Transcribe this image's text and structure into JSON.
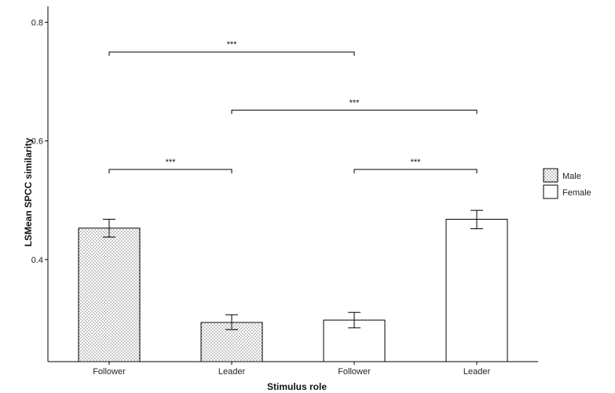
{
  "chart_data": {
    "type": "bar",
    "xlabel": "Stimulus role",
    "ylabel": "LSMean SPCC similarity",
    "ylim": [
      0.228,
      0.827
    ],
    "yticks": [
      0.4,
      0.6,
      0.8
    ],
    "ytick_labels": [
      "0.4",
      "0.6",
      "0.8"
    ],
    "bars": [
      {
        "category": "Follower",
        "group": "Male",
        "value": 0.453,
        "err_low": 0.438,
        "err_high": 0.468
      },
      {
        "category": "Leader",
        "group": "Male",
        "value": 0.294,
        "err_low": 0.282,
        "err_high": 0.307
      },
      {
        "category": "Follower",
        "group": "Female",
        "value": 0.298,
        "err_low": 0.285,
        "err_high": 0.311
      },
      {
        "category": "Leader",
        "group": "Female",
        "value": 0.468,
        "err_low": 0.452,
        "err_high": 0.483
      }
    ],
    "legend": {
      "position": "right",
      "entries": [
        {
          "label": "Male",
          "fill": "dotted"
        },
        {
          "label": "Female",
          "fill": "white"
        }
      ]
    },
    "significance": [
      {
        "from": 0,
        "to": 2,
        "y": 0.75,
        "label": "***"
      },
      {
        "from": 1,
        "to": 3,
        "y": 0.652,
        "label": "***"
      },
      {
        "from": 0,
        "to": 1,
        "y": 0.552,
        "label": "***"
      },
      {
        "from": 2,
        "to": 3,
        "y": 0.552,
        "label": "***"
      }
    ],
    "grid": false,
    "colors": {
      "bar_edge": "#000000",
      "dot_fill": "#555555",
      "background": "#ffffff"
    }
  }
}
